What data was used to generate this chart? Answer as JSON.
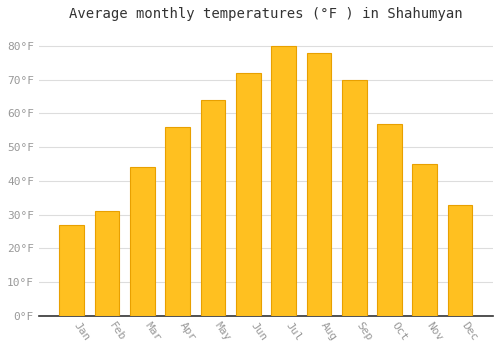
{
  "title": "Average monthly temperatures (°F ) in Shahumyan",
  "months": [
    "Jan",
    "Feb",
    "Mar",
    "Apr",
    "May",
    "Jun",
    "Jul",
    "Aug",
    "Sep",
    "Oct",
    "Nov",
    "Dec"
  ],
  "values": [
    27,
    31,
    44,
    56,
    64,
    72,
    80,
    78,
    70,
    57,
    45,
    33
  ],
  "bar_color_main": "#FFC020",
  "bar_color_edge": "#E8A000",
  "background_color": "#FFFFFF",
  "grid_color": "#DDDDDD",
  "ylim": [
    0,
    85
  ],
  "yticks": [
    0,
    10,
    20,
    30,
    40,
    50,
    60,
    70,
    80
  ],
  "ytick_labels": [
    "0°F",
    "10°F",
    "20°F",
    "30°F",
    "40°F",
    "50°F",
    "60°F",
    "70°F",
    "80°F"
  ],
  "title_fontsize": 10,
  "tick_fontsize": 8,
  "font_family": "monospace",
  "tick_color": "#999999",
  "bar_width": 0.7
}
